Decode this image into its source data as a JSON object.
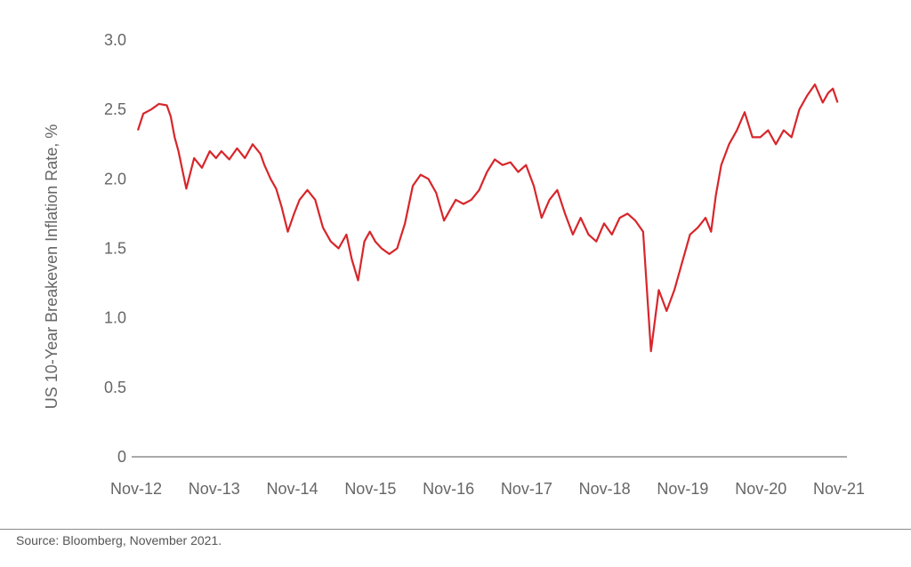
{
  "chart_data": {
    "type": "line",
    "title": "",
    "xlabel": "",
    "ylabel": "US 10-Year Breakeven Inflation Rate, %",
    "ylim": [
      0,
      3.0
    ],
    "y_ticks": [
      "0",
      "0.5",
      "1.0",
      "1.5",
      "2.0",
      "2.5",
      "3.0"
    ],
    "x_ticks": [
      "Nov-12",
      "Nov-13",
      "Nov-14",
      "Nov-15",
      "Nov-16",
      "Nov-17",
      "Nov-18",
      "Nov-19",
      "Nov-20",
      "Nov-21"
    ],
    "grid": false,
    "line_color": "#d7262b",
    "series": [
      {
        "x": [
          2012.88,
          2012.95,
          2013.05,
          2013.15,
          2013.25,
          2013.3,
          2013.35,
          2013.4,
          2013.5,
          2013.6,
          2013.7,
          2013.8,
          2013.88,
          2013.95,
          2014.05,
          2014.15,
          2014.25,
          2014.35,
          2014.45,
          2014.5,
          2014.58,
          2014.65,
          2014.72,
          2014.8,
          2014.88,
          2014.95,
          2015.05,
          2015.15,
          2015.25,
          2015.35,
          2015.45,
          2015.55,
          2015.62,
          2015.7,
          2015.78,
          2015.85,
          2015.92,
          2016.0,
          2016.1,
          2016.2,
          2016.3,
          2016.4,
          2016.5,
          2016.6,
          2016.7,
          2016.8,
          2016.88,
          2016.95,
          2017.05,
          2017.15,
          2017.25,
          2017.35,
          2017.45,
          2017.55,
          2017.65,
          2017.75,
          2017.85,
          2017.95,
          2018.05,
          2018.15,
          2018.25,
          2018.35,
          2018.45,
          2018.55,
          2018.65,
          2018.75,
          2018.85,
          2018.95,
          2019.05,
          2019.15,
          2019.25,
          2019.35,
          2019.45,
          2019.55,
          2019.65,
          2019.75,
          2019.85,
          2019.95,
          2020.05,
          2020.15,
          2020.22,
          2020.28,
          2020.35,
          2020.45,
          2020.55,
          2020.65,
          2020.75,
          2020.85,
          2020.95,
          2021.05,
          2021.15,
          2021.25,
          2021.35,
          2021.45,
          2021.55,
          2021.65,
          2021.72,
          2021.78,
          2021.84
        ],
        "values": [
          2.35,
          2.47,
          2.5,
          2.54,
          2.53,
          2.45,
          2.3,
          2.2,
          1.93,
          2.15,
          2.08,
          2.2,
          2.15,
          2.2,
          2.14,
          2.22,
          2.15,
          2.25,
          2.18,
          2.1,
          2.0,
          1.93,
          1.8,
          1.62,
          1.75,
          1.85,
          1.92,
          1.85,
          1.65,
          1.55,
          1.5,
          1.6,
          1.42,
          1.27,
          1.55,
          1.62,
          1.55,
          1.5,
          1.46,
          1.5,
          1.68,
          1.95,
          2.03,
          2.0,
          1.9,
          1.7,
          1.78,
          1.85,
          1.82,
          1.85,
          1.92,
          2.05,
          2.14,
          2.1,
          2.12,
          2.05,
          2.1,
          1.95,
          1.72,
          1.85,
          1.92,
          1.75,
          1.6,
          1.72,
          1.6,
          1.55,
          1.68,
          1.6,
          1.72,
          1.75,
          1.7,
          1.62,
          0.76,
          1.2,
          1.05,
          1.2,
          1.4,
          1.6,
          1.65,
          1.72,
          1.62,
          1.88,
          2.1,
          2.25,
          2.35,
          2.48,
          2.3,
          2.3,
          2.35,
          2.25,
          2.35,
          2.3,
          2.5,
          2.6,
          2.68,
          2.55,
          2.62,
          2.65,
          2.55
        ]
      }
    ]
  },
  "source": "Source: Bloomberg, November 2021."
}
